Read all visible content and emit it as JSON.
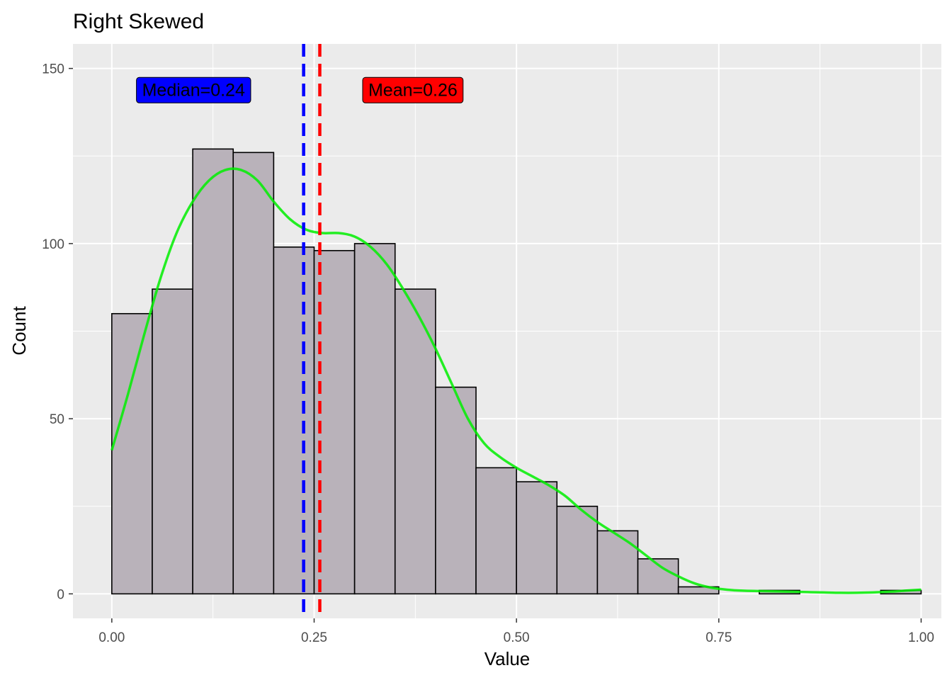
{
  "chart_data": {
    "type": "bar",
    "title": "Right Skewed",
    "xlabel": "Value",
    "ylabel": "Count",
    "xlim": [
      -0.048,
      1.025
    ],
    "ylim": [
      -7,
      157
    ],
    "x_ticks": [
      0,
      0.25,
      0.5,
      0.75,
      1
    ],
    "x_tick_labels": [
      "0.00",
      "0.25",
      "0.50",
      "0.75",
      "1.00"
    ],
    "y_ticks": [
      0,
      50,
      100,
      150
    ],
    "y_tick_labels": [
      "0",
      "50",
      "100",
      "150"
    ],
    "grid": true,
    "bin_width": 0.05,
    "bins": [
      {
        "x0": 0.0,
        "x1": 0.05,
        "count": 80
      },
      {
        "x0": 0.05,
        "x1": 0.1,
        "count": 87
      },
      {
        "x0": 0.1,
        "x1": 0.15,
        "count": 127
      },
      {
        "x0": 0.15,
        "x1": 0.2,
        "count": 126
      },
      {
        "x0": 0.2,
        "x1": 0.25,
        "count": 99
      },
      {
        "x0": 0.25,
        "x1": 0.3,
        "count": 98
      },
      {
        "x0": 0.3,
        "x1": 0.35,
        "count": 100
      },
      {
        "x0": 0.35,
        "x1": 0.4,
        "count": 87
      },
      {
        "x0": 0.4,
        "x1": 0.45,
        "count": 59
      },
      {
        "x0": 0.45,
        "x1": 0.5,
        "count": 36
      },
      {
        "x0": 0.5,
        "x1": 0.55,
        "count": 32
      },
      {
        "x0": 0.55,
        "x1": 0.6,
        "count": 25
      },
      {
        "x0": 0.6,
        "x1": 0.65,
        "count": 18
      },
      {
        "x0": 0.65,
        "x1": 0.7,
        "count": 10
      },
      {
        "x0": 0.7,
        "x1": 0.75,
        "count": 2
      },
      {
        "x0": 0.75,
        "x1": 0.8,
        "count": 0
      },
      {
        "x0": 0.8,
        "x1": 0.85,
        "count": 1
      },
      {
        "x0": 0.85,
        "x1": 0.9,
        "count": 0
      },
      {
        "x0": 0.9,
        "x1": 0.95,
        "count": 0
      },
      {
        "x0": 0.95,
        "x1": 1.0,
        "count": 1
      }
    ],
    "density_curve": {
      "color": "#00EE00",
      "points": [
        [
          0.0,
          41
        ],
        [
          0.02,
          57
        ],
        [
          0.04,
          74
        ],
        [
          0.06,
          90
        ],
        [
          0.08,
          103
        ],
        [
          0.1,
          112
        ],
        [
          0.12,
          118
        ],
        [
          0.14,
          121
        ],
        [
          0.16,
          121
        ],
        [
          0.18,
          118
        ],
        [
          0.2,
          112
        ],
        [
          0.22,
          107
        ],
        [
          0.24,
          104
        ],
        [
          0.26,
          103
        ],
        [
          0.28,
          103
        ],
        [
          0.3,
          102
        ],
        [
          0.32,
          99
        ],
        [
          0.34,
          94
        ],
        [
          0.36,
          87
        ],
        [
          0.38,
          79
        ],
        [
          0.4,
          70
        ],
        [
          0.42,
          60
        ],
        [
          0.44,
          50
        ],
        [
          0.46,
          43
        ],
        [
          0.48,
          39
        ],
        [
          0.5,
          36
        ],
        [
          0.52,
          33.5
        ],
        [
          0.54,
          31
        ],
        [
          0.56,
          28
        ],
        [
          0.58,
          24
        ],
        [
          0.6,
          20.5
        ],
        [
          0.62,
          17.5
        ],
        [
          0.64,
          14.5
        ],
        [
          0.66,
          11
        ],
        [
          0.68,
          7.5
        ],
        [
          0.7,
          5
        ],
        [
          0.72,
          3
        ],
        [
          0.74,
          1.8
        ],
        [
          0.76,
          1.2
        ],
        [
          0.78,
          0.9
        ],
        [
          0.8,
          0.8
        ],
        [
          0.82,
          0.7
        ],
        [
          0.84,
          0.6
        ],
        [
          0.86,
          0.5
        ],
        [
          0.88,
          0.4
        ],
        [
          0.9,
          0.3
        ],
        [
          0.92,
          0.3
        ],
        [
          0.94,
          0.4
        ],
        [
          0.96,
          0.6
        ],
        [
          0.98,
          0.9
        ],
        [
          1.0,
          1.2
        ]
      ]
    },
    "median": {
      "value": 0.237,
      "label": "Median=0.24",
      "color": "#0000FF",
      "label_x": 0.101,
      "label_y": 144
    },
    "mean": {
      "value": 0.257,
      "label": "Mean=0.26",
      "color": "#FF0000",
      "label_x": 0.372,
      "label_y": 144
    },
    "colors": {
      "panel_bg": "#EBEBEB",
      "grid": "#FFFFFF",
      "bar_fill": "#B9B2BA",
      "bar_outline": "#000000"
    }
  }
}
